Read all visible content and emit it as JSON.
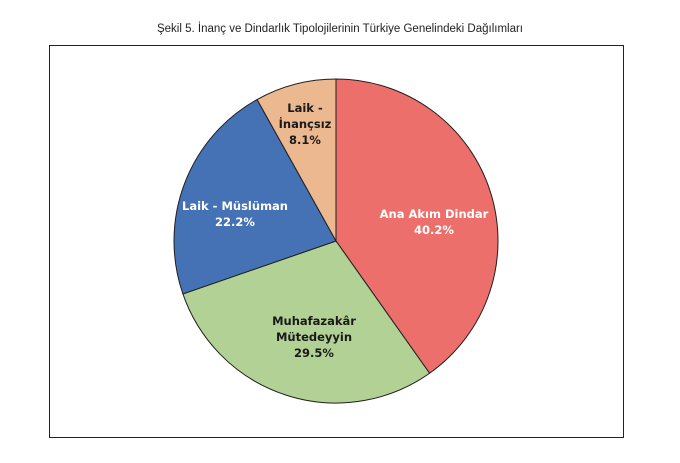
{
  "chart_data": {
    "type": "pie",
    "title": "Şekil 5. İnanç ve Dindarlık Tipolojilerinin Türkiye Genelindeki Dağılımları",
    "slices": [
      {
        "label": "Ana Akım Dindar",
        "value": 40.2,
        "value_label": "40.2%",
        "color": "#ED6F6B",
        "text_color": "#ffffff"
      },
      {
        "label": "Muhafazakâr Mütedeyyin",
        "value": 29.5,
        "value_label": "29.5%",
        "color": "#B2D195",
        "text_color": "#1a1a1a"
      },
      {
        "label": "Laik - Müslüman",
        "value": 22.2,
        "value_label": "22.2%",
        "color": "#4472B4",
        "text_color": "#ffffff"
      },
      {
        "label": "Laik - İnançsız",
        "value": 8.1,
        "value_label": "8.1%",
        "color": "#EBB88F",
        "text_color": "#1a1a1a"
      }
    ],
    "start_angle": "top",
    "direction": "clockwise",
    "legend": "none"
  }
}
